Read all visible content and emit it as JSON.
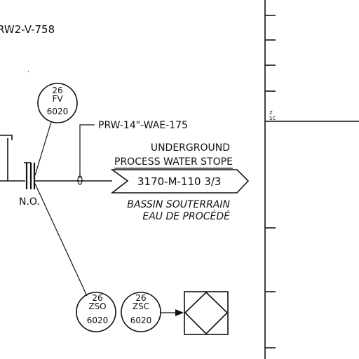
{
  "drawing": {
    "line_label_top": "RW2-V-758",
    "pipe_label": "PRW-14\"-WAE-175",
    "valve_position": "N.O.",
    "instruments": {
      "fv": {
        "number": "26",
        "type": "FV",
        "loop": "6020"
      },
      "zso": {
        "number": "26",
        "type": "ZSO",
        "loop": "6020"
      },
      "zsc": {
        "number": "26",
        "type": "ZSC",
        "loop": "6020"
      }
    },
    "offpage": {
      "title_en_line1": "UNDERGROUND",
      "title_en_line2": "PROCESS WATER STOPE",
      "reference": "3170-M-110  3/3",
      "title_fr_line1": "BASSIN SOUTERRAIN",
      "title_fr_line2": "EAU DE PROCÉDÉ"
    },
    "title_block_fragment": "Ź\nSC"
  }
}
